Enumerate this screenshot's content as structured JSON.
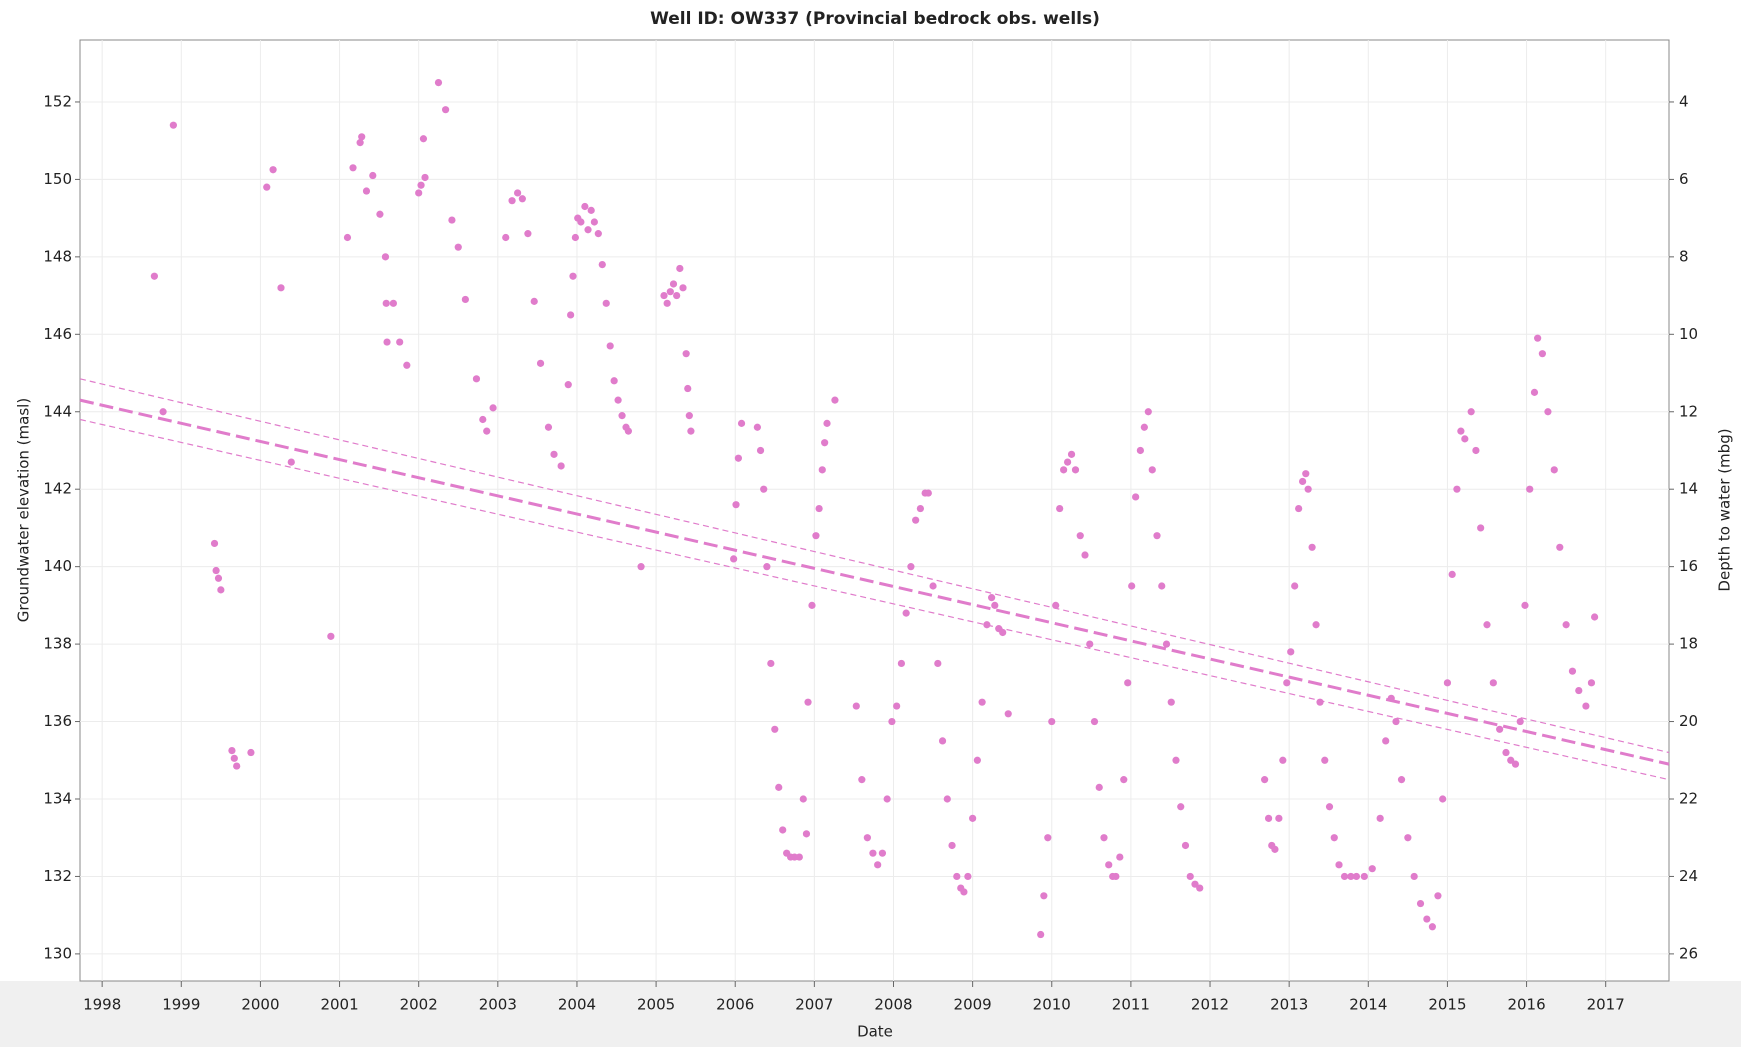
{
  "chart_data": {
    "type": "scatter",
    "title": "Well ID: OW337 (Provincial bedrock obs. wells)",
    "x_label": "Date",
    "y_label": "Groundwater elevation (masl)",
    "y2_label": "Depth to water (mbg)",
    "xlim": [
      1997.72,
      2017.8
    ],
    "xticks": [
      1998,
      1999,
      2000,
      2001,
      2002,
      2003,
      2004,
      2005,
      2006,
      2007,
      2008,
      2009,
      2010,
      2011,
      2012,
      2013,
      2014,
      2015,
      2016,
      2017
    ],
    "ylim": [
      129.3,
      153.6
    ],
    "yticks": [
      130,
      132,
      134,
      136,
      138,
      140,
      142,
      144,
      146,
      148,
      150,
      152
    ],
    "y2lim": [
      26.7,
      2.4
    ],
    "y2ticks": [
      4,
      6,
      8,
      10,
      12,
      14,
      16,
      18,
      20,
      22,
      24,
      26
    ],
    "grid": true,
    "series": [
      {
        "color": "#e07ccb",
        "marker": "circle",
        "x": [
          1998.66,
          1998.77,
          1998.9,
          1999.42,
          1999.44,
          1999.47,
          1999.5,
          1999.64,
          1999.67,
          1999.7,
          1999.88,
          2000.08,
          2000.16,
          2000.26,
          2000.39,
          2000.89,
          2001.1,
          2001.17,
          2001.26,
          2001.28,
          2001.34,
          2001.42,
          2001.51,
          2001.58,
          2001.59,
          2001.68,
          2001.6,
          2001.76,
          2001.85,
          2002.0,
          2002.03,
          2002.06,
          2002.08,
          2002.25,
          2002.34,
          2002.42,
          2002.5,
          2002.59,
          2002.73,
          2002.81,
          2002.86,
          2002.94,
          2003.1,
          2003.18,
          2003.25,
          2003.31,
          2003.38,
          2003.46,
          2003.54,
          2003.64,
          2003.71,
          2003.8,
          2003.89,
          2004.81,
          2007.26,
          2006.9,
          2003.92,
          2003.95,
          2003.98,
          2004.01,
          2004.05,
          2004.1,
          2004.14,
          2004.18,
          2004.22,
          2004.27,
          2004.32,
          2004.37,
          2004.42,
          2004.47,
          2004.52,
          2004.57,
          2004.62,
          2004.65,
          2005.1,
          2005.14,
          2005.18,
          2005.22,
          2005.26,
          2005.3,
          2005.34,
          2005.38,
          2005.4,
          2005.42,
          2005.44,
          2005.98,
          2006.01,
          2006.04,
          2006.08,
          2006.28,
          2006.32,
          2006.36,
          2006.4,
          2006.45,
          2006.5,
          2006.55,
          2006.6,
          2006.65,
          2006.7,
          2006.75,
          2006.81,
          2006.86,
          2006.92,
          2006.97,
          2007.02,
          2007.06,
          2007.1,
          2007.13,
          2007.16,
          2007.53,
          2007.6,
          2007.67,
          2007.74,
          2007.8,
          2007.86,
          2007.92,
          2007.98,
          2008.04,
          2008.1,
          2008.16,
          2008.22,
          2008.28,
          2008.34,
          2008.4,
          2008.44,
          2008.5,
          2008.56,
          2008.62,
          2008.68,
          2008.74,
          2008.8,
          2008.85,
          2008.89,
          2008.94,
          2009.0,
          2009.06,
          2009.12,
          2009.18,
          2009.24,
          2009.28,
          2009.33,
          2009.38,
          2009.45,
          2009.86,
          2009.9,
          2009.95,
          2010.0,
          2010.05,
          2010.1,
          2010.15,
          2010.2,
          2010.25,
          2010.3,
          2010.36,
          2010.42,
          2010.48,
          2010.54,
          2010.6,
          2010.66,
          2010.72,
          2010.77,
          2010.81,
          2010.86,
          2010.91,
          2010.96,
          2011.01,
          2011.06,
          2011.12,
          2011.17,
          2011.22,
          2011.27,
          2011.33,
          2011.39,
          2011.45,
          2011.51,
          2011.57,
          2011.63,
          2011.69,
          2011.75,
          2011.81,
          2011.87,
          2012.69,
          2012.74,
          2012.78,
          2012.82,
          2012.87,
          2012.92,
          2012.97,
          2013.02,
          2013.07,
          2013.12,
          2013.17,
          2013.21,
          2013.24,
          2013.29,
          2013.34,
          2013.39,
          2013.45,
          2013.51,
          2013.57,
          2013.63,
          2013.7,
          2013.78,
          2013.85,
          2013.95,
          2014.05,
          2014.15,
          2014.22,
          2014.29,
          2014.35,
          2014.42,
          2014.5,
          2014.58,
          2014.66,
          2014.74,
          2014.81,
          2014.88,
          2014.94,
          2015.0,
          2015.06,
          2015.12,
          2015.17,
          2015.22,
          2015.3,
          2015.36,
          2015.42,
          2015.5,
          2015.58,
          2015.66,
          2015.74,
          2015.8,
          2015.86,
          2015.92,
          2015.98,
          2016.04,
          2016.1,
          2016.14,
          2016.2,
          2016.27,
          2016.35,
          2016.42,
          2016.5,
          2016.58,
          2016.66,
          2016.75,
          2016.82,
          2016.86
        ],
        "values": [
          147.5,
          144.0,
          151.4,
          140.6,
          139.9,
          139.7,
          139.4,
          135.25,
          135.05,
          134.85,
          135.2,
          149.8,
          150.25,
          147.2,
          142.7,
          138.2,
          148.5,
          150.3,
          150.95,
          151.1,
          149.7,
          150.1,
          149.1,
          148.0,
          146.8,
          146.8,
          145.8,
          145.8,
          145.2,
          149.65,
          149.85,
          151.05,
          150.05,
          152.5,
          151.8,
          148.95,
          148.25,
          146.9,
          144.85,
          143.8,
          143.5,
          144.1,
          148.5,
          149.45,
          149.65,
          149.5,
          148.6,
          146.85,
          145.25,
          143.6,
          142.9,
          142.6,
          144.7,
          140.0,
          144.3,
          133.1,
          146.5,
          147.5,
          148.5,
          149.0,
          148.9,
          149.3,
          148.7,
          149.2,
          148.9,
          148.6,
          147.8,
          146.8,
          145.7,
          144.8,
          144.3,
          143.9,
          143.6,
          143.5,
          147.0,
          146.8,
          147.1,
          147.3,
          147.0,
          147.7,
          147.2,
          145.5,
          144.6,
          143.9,
          143.5,
          140.2,
          141.6,
          142.8,
          143.7,
          143.6,
          143.0,
          142.0,
          140.0,
          137.5,
          135.8,
          134.3,
          133.2,
          132.6,
          132.5,
          132.5,
          132.5,
          134.0,
          136.5,
          139.0,
          140.8,
          141.5,
          142.5,
          143.2,
          143.7,
          136.4,
          134.5,
          133.0,
          132.6,
          132.3,
          132.6,
          134.0,
          136.0,
          136.4,
          137.5,
          138.8,
          140.0,
          141.2,
          141.5,
          141.9,
          141.9,
          139.5,
          137.5,
          135.5,
          134.0,
          132.8,
          132.0,
          131.7,
          131.6,
          132.0,
          133.5,
          135.0,
          136.5,
          138.5,
          139.2,
          139.0,
          138.4,
          138.3,
          136.2,
          130.5,
          131.5,
          133.0,
          136.0,
          139.0,
          141.5,
          142.5,
          142.7,
          142.9,
          142.5,
          140.8,
          140.3,
          138.0,
          136.0,
          134.3,
          133.0,
          132.3,
          132.0,
          132.0,
          132.5,
          134.5,
          137.0,
          139.5,
          141.8,
          143.0,
          143.6,
          144.0,
          142.5,
          140.8,
          139.5,
          138.0,
          136.5,
          135.0,
          133.8,
          132.8,
          132.0,
          131.8,
          131.7,
          134.5,
          133.5,
          132.8,
          132.7,
          133.5,
          135.0,
          137.0,
          137.8,
          139.5,
          141.5,
          142.2,
          142.4,
          142.0,
          140.5,
          138.5,
          136.5,
          135.0,
          133.8,
          133.0,
          132.3,
          132.0,
          132.0,
          132.0,
          132.0,
          132.2,
          133.5,
          135.5,
          136.6,
          136.0,
          134.5,
          133.0,
          132.0,
          131.3,
          130.9,
          130.7,
          131.5,
          134.0,
          137.0,
          139.8,
          142.0,
          143.5,
          143.3,
          144.0,
          143.0,
          141.0,
          138.5,
          137.0,
          135.8,
          135.2,
          135.0,
          134.9,
          136.0,
          139.0,
          142.0,
          144.5,
          145.9,
          145.5,
          144.0,
          142.5,
          140.5,
          138.5,
          137.3,
          136.8,
          136.4,
          137.0,
          138.7
        ]
      },
      {
        "color": "#e07ccb",
        "marker": "dashed-line",
        "linewidth": 1.2,
        "x": [
          1997.72,
          2017.8
        ],
        "values": [
          144.85,
          135.2
        ]
      },
      {
        "color": "#e07ccb",
        "marker": "dashed-line",
        "linewidth": 3,
        "x": [
          1997.72,
          2017.8
        ],
        "values": [
          144.3,
          134.9
        ]
      },
      {
        "color": "#e07ccb",
        "marker": "dashed-line",
        "linewidth": 1.2,
        "x": [
          1997.72,
          2017.8
        ],
        "values": [
          143.8,
          134.5
        ]
      }
    ]
  }
}
